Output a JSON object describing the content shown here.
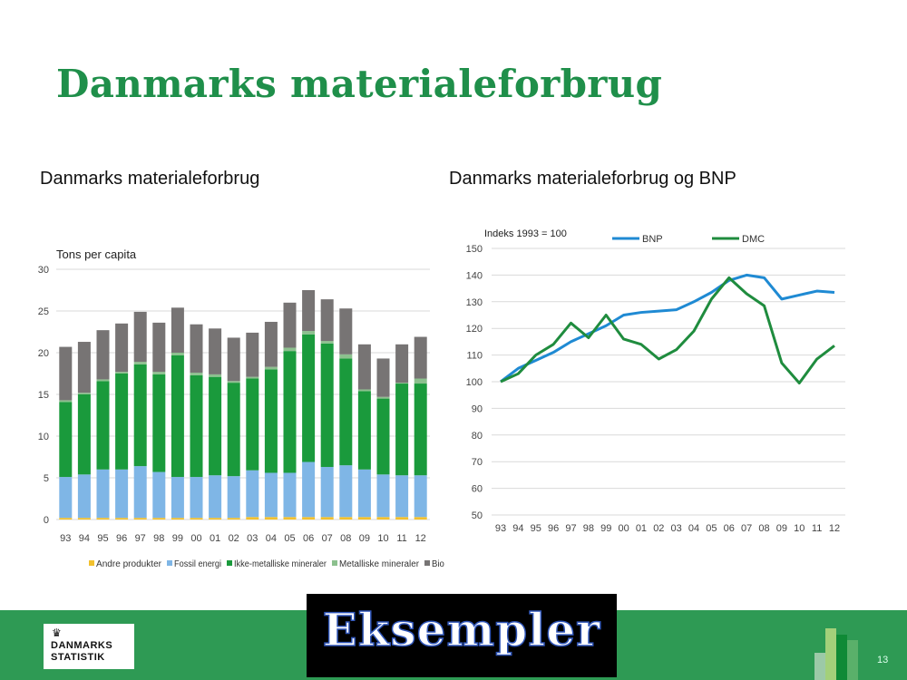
{
  "slide": {
    "title": "Danmarks materialeforbrug",
    "left_subtitle": "Danmarks materialeforbrug",
    "right_subtitle": "Danmarks materialeforbrug og BNP",
    "banner": "Eksempler",
    "page_number": "13",
    "logo_line1": "DANMARKS",
    "logo_line2": "STATISTIK",
    "colors": {
      "title": "#1f8f4a",
      "band": "#2e9a54",
      "banner_bg": "#000000",
      "banner_text": "#ffffff"
    }
  },
  "chart_data": [
    {
      "type": "bar",
      "stacked": true,
      "ylabel": "Tons per capita",
      "ylim": [
        0,
        30
      ],
      "yticks": [
        "0",
        "5",
        "10",
        "15",
        "20",
        "25",
        "30"
      ],
      "categories": [
        "93",
        "94",
        "95",
        "96",
        "97",
        "98",
        "99",
        "00",
        "01",
        "02",
        "03",
        "04",
        "05",
        "06",
        "07",
        "08",
        "09",
        "10",
        "11",
        "12"
      ],
      "legend_position": "bottom",
      "grid": true,
      "series": [
        {
          "name": "Andre produkter",
          "color": "#f2c12e",
          "values": [
            0.2,
            0.2,
            0.2,
            0.2,
            0.2,
            0.2,
            0.2,
            0.2,
            0.2,
            0.2,
            0.3,
            0.3,
            0.3,
            0.3,
            0.3,
            0.3,
            0.3,
            0.3,
            0.3,
            0.3
          ]
        },
        {
          "name": "Fossil energi",
          "color": "#7fb6e6",
          "values": [
            4.9,
            5.2,
            5.8,
            5.8,
            6.2,
            5.5,
            4.9,
            4.9,
            5.1,
            5.0,
            5.6,
            5.3,
            5.3,
            6.6,
            6.0,
            6.2,
            5.7,
            5.1,
            5.0,
            5.0
          ]
        },
        {
          "name": "Ikke-metalliske mineraler",
          "color": "#1a9a3c",
          "values": [
            9.0,
            9.6,
            10.6,
            11.5,
            12.2,
            11.7,
            14.6,
            12.2,
            11.8,
            11.2,
            11.0,
            12.4,
            14.6,
            15.3,
            14.8,
            12.8,
            9.4,
            9.1,
            11.0,
            11.0
          ]
        },
        {
          "name": "Metalliske mineraler",
          "color": "#8cc08e",
          "values": [
            0.2,
            0.2,
            0.2,
            0.2,
            0.3,
            0.3,
            0.3,
            0.3,
            0.3,
            0.2,
            0.2,
            0.3,
            0.4,
            0.4,
            0.3,
            0.5,
            0.2,
            0.2,
            0.1,
            0.6
          ]
        },
        {
          "name": "Biomasse",
          "color": "#777474",
          "values": [
            6.4,
            6.1,
            5.9,
            5.8,
            6.0,
            5.9,
            5.4,
            5.8,
            5.5,
            5.2,
            5.3,
            5.4,
            5.4,
            4.9,
            5.0,
            5.5,
            5.4,
            4.6,
            4.6,
            5.0
          ]
        }
      ]
    },
    {
      "type": "line",
      "ylabel": "Indeks 1993 = 100",
      "ylim": [
        50,
        150
      ],
      "yticks": [
        "50",
        "60",
        "70",
        "80",
        "90",
        "100",
        "110",
        "120",
        "130",
        "140",
        "150"
      ],
      "x": [
        "93",
        "94",
        "95",
        "96",
        "97",
        "98",
        "99",
        "00",
        "01",
        "02",
        "03",
        "04",
        "05",
        "06",
        "07",
        "08",
        "09",
        "10",
        "11",
        "12"
      ],
      "legend_position": "top",
      "grid": true,
      "series": [
        {
          "name": "BNP",
          "color": "#1f8ad3",
          "values": [
            100,
            105,
            108,
            111,
            115,
            118,
            121,
            125,
            126,
            126.5,
            127,
            130,
            133.5,
            138,
            140,
            139,
            131,
            132.5,
            134,
            133.5
          ]
        },
        {
          "name": "DMC",
          "color": "#1f8c3e",
          "values": [
            100,
            103,
            110,
            114,
            122,
            116.5,
            125,
            116,
            114,
            108.5,
            112,
            119,
            131,
            139,
            133,
            128.5,
            107,
            99.5,
            108.5,
            113.5
          ]
        }
      ]
    }
  ]
}
